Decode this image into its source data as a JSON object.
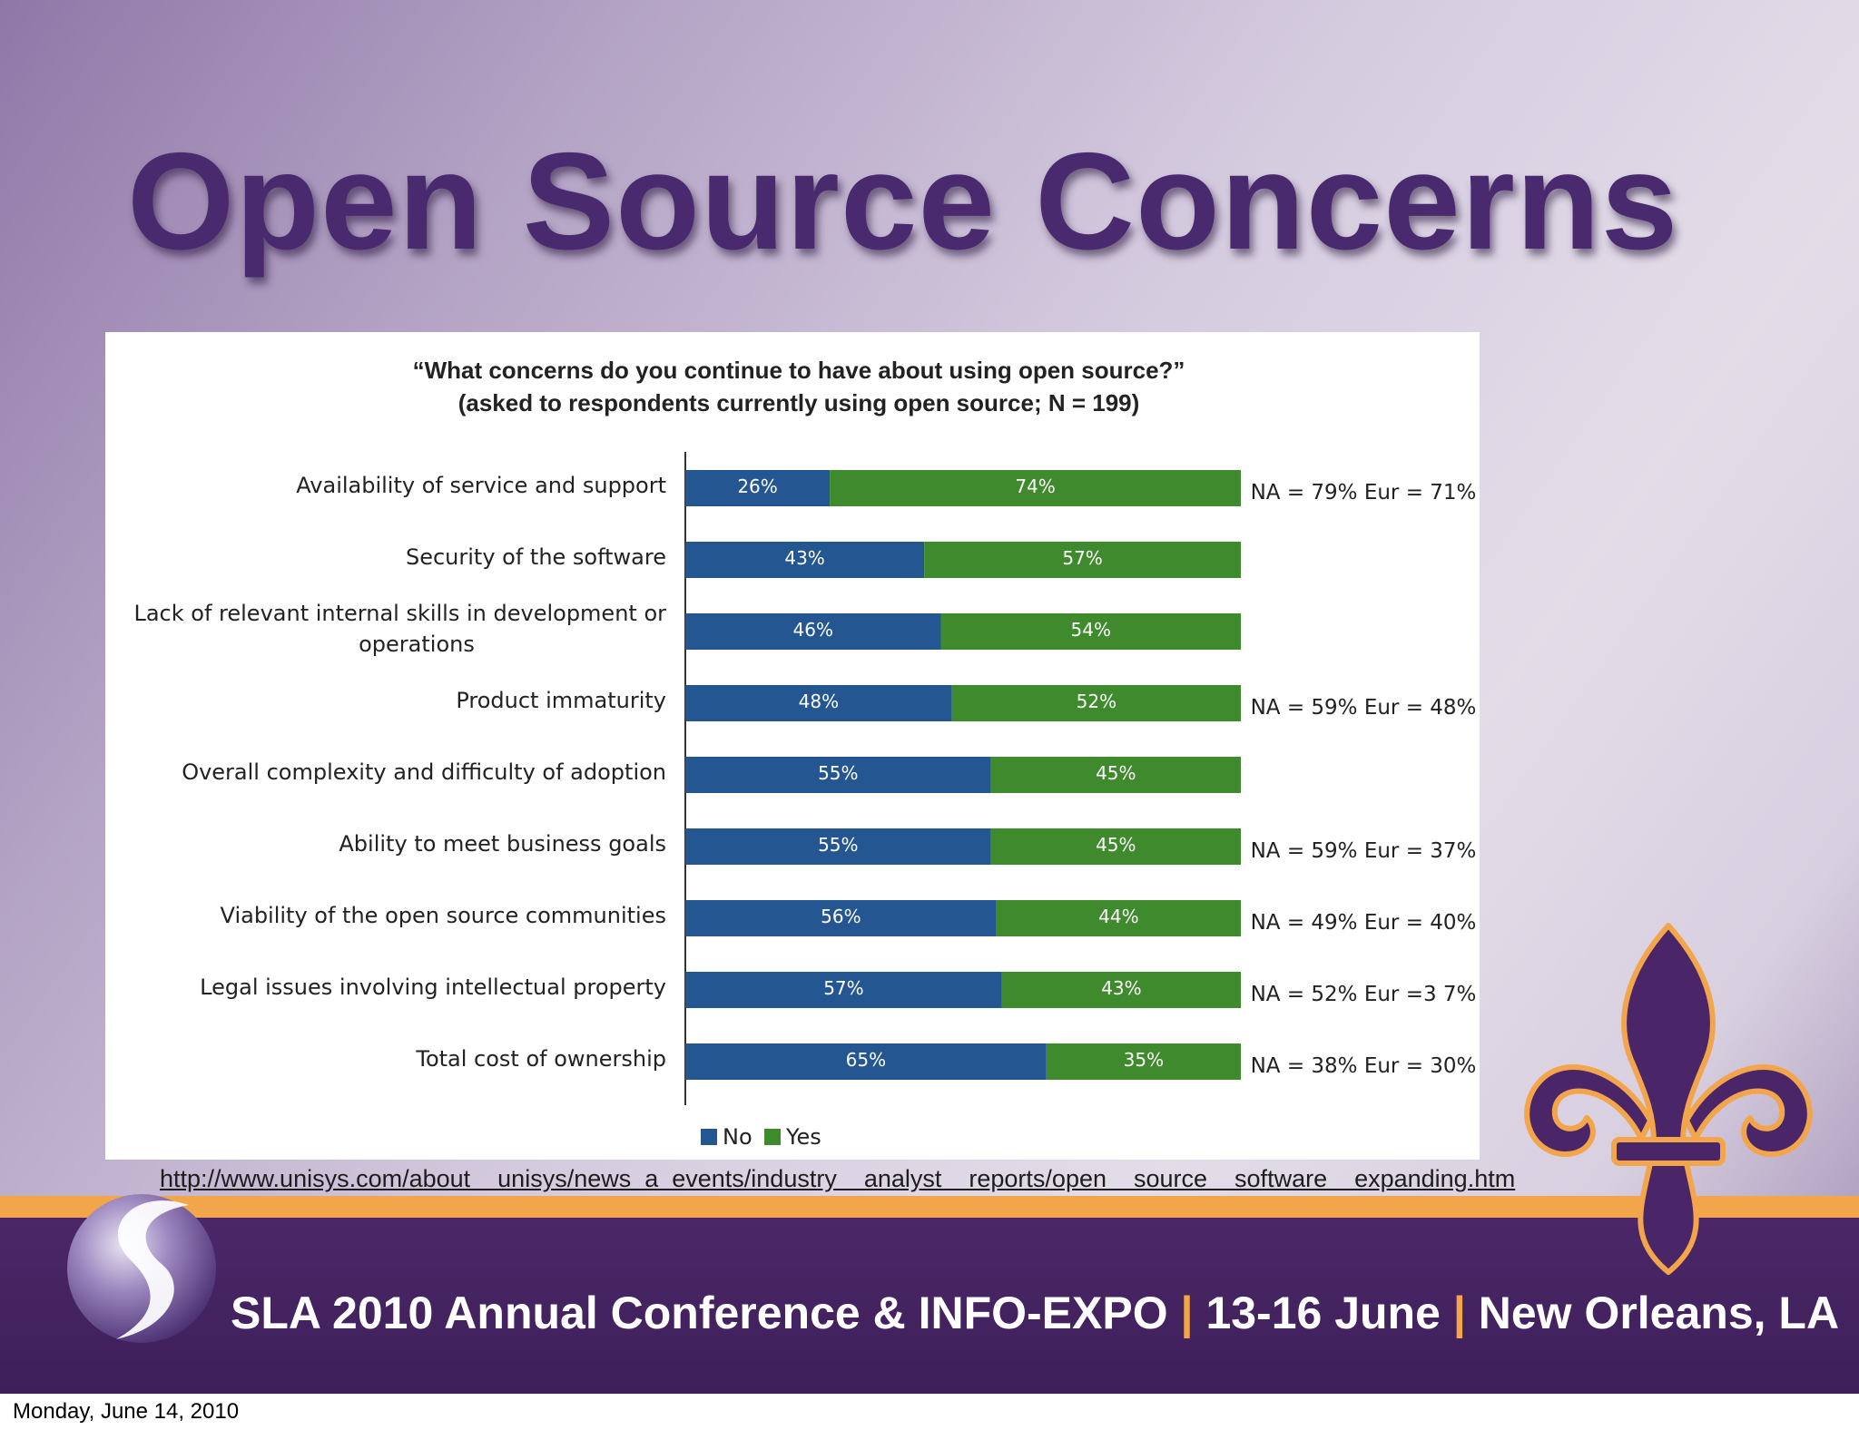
{
  "slide": {
    "title": "Open Source Concerns",
    "source_url": "http://www.unisys.com/about    unisys/news  a  events/industry    analyst    reports/open    source    software    expanding.htm",
    "footer": {
      "part1": "SLA 2010 Annual Conference & INFO-EXPO",
      "separator": "|",
      "part2": "13-16 June",
      "part3": "New Orleans, LA"
    },
    "date_line": "Monday, June 14, 2010"
  },
  "colors": {
    "no": "#245791",
    "yes": "#3f8a2c",
    "title": "#4a2a6e",
    "accent": "#f2a54a"
  },
  "icons": [
    "sla-swirl-logo",
    "fleur-de-lis-icon"
  ],
  "chart_data": {
    "type": "bar",
    "orientation": "horizontal",
    "stacked": true,
    "title": "“What concerns do you continue to have about using open source?”",
    "subtitle": "(asked to respondents currently using open source; N = 199)",
    "categories": [
      [
        "Availability of service and support"
      ],
      [
        "Security of the software"
      ],
      [
        "Lack of relevant internal skills in development or",
        "operations"
      ],
      [
        "Product immaturity"
      ],
      [
        "Overall complexity and difficulty of adoption"
      ],
      [
        "Ability to meet business goals"
      ],
      [
        "Viability of the open source communities"
      ],
      [
        "Legal issues involving intellectual property"
      ],
      [
        "Total cost of ownership"
      ]
    ],
    "series": [
      {
        "name": "No",
        "values": [
          26,
          43,
          46,
          48,
          55,
          55,
          56,
          57,
          65
        ],
        "labels": [
          "26%",
          "43%",
          "46%",
          "48%",
          "55%",
          "55%",
          "56%",
          "57%",
          "65%"
        ]
      },
      {
        "name": "Yes",
        "values": [
          74,
          57,
          54,
          52,
          45,
          45,
          44,
          43,
          35
        ],
        "labels": [
          "74%",
          "57%",
          "54%",
          "52%",
          "45%",
          "45%",
          "44%",
          "43%",
          "35%"
        ]
      }
    ],
    "annotations": [
      "NA = 79% Eur = 71%",
      "",
      "",
      "NA = 59% Eur = 48%",
      "",
      "NA = 59% Eur = 37%",
      "NA = 49% Eur = 40%",
      "NA = 52% Eur =3 7%",
      "NA = 38% Eur = 30%"
    ],
    "legend": {
      "position": "bottom",
      "entries": [
        "No",
        "Yes"
      ]
    },
    "xlim": [
      0,
      100
    ],
    "grid": false
  }
}
